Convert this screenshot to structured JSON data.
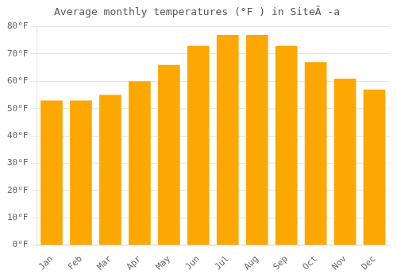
{
  "chart_data": {
    "type": "bar",
    "title": "Average monthly temperatures (°F ) in SiteÃ -a",
    "categories": [
      "Jan",
      "Feb",
      "Mar",
      "Apr",
      "May",
      "Jun",
      "Jul",
      "Aug",
      "Sep",
      "Oct",
      "Nov",
      "Dec"
    ],
    "values": [
      53,
      53,
      55,
      60,
      66,
      73,
      77,
      77,
      73,
      67,
      61,
      57
    ],
    "color": "#FCA800",
    "ylim": [
      0,
      80
    ],
    "yticks": [
      {
        "value": 0,
        "label": "0°F"
      },
      {
        "value": 10,
        "label": "10°F"
      },
      {
        "value": 20,
        "label": "20°F"
      },
      {
        "value": 30,
        "label": "30°F"
      },
      {
        "value": 40,
        "label": "40°F"
      },
      {
        "value": 50,
        "label": "50°F"
      },
      {
        "value": 60,
        "label": "60°F"
      },
      {
        "value": 70,
        "label": "70°F"
      },
      {
        "value": 80,
        "label": "80°F"
      }
    ],
    "grid": true
  }
}
